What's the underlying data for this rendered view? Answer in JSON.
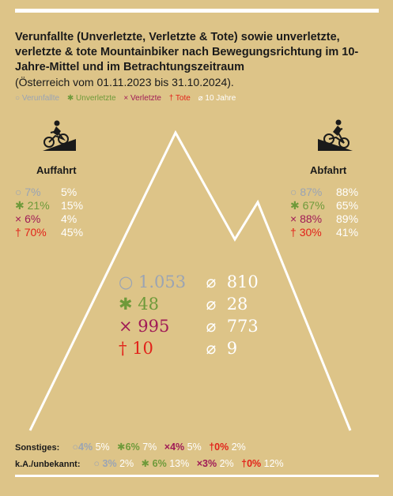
{
  "title": "Verunfallte (Unverletzte, Verletzte & Tote) sowie unverletzte, verletzte & tote Mountainbiker nach Bewegungsrichtung im 10-Jahre-Mittel und im Betrachtungszeitraum",
  "subtitle": "(Österreich vom 01.11.2023 bis 31.10.2024).",
  "legend": [
    {
      "symbol": "○",
      "label": "Verunfallte",
      "color": "#9aa4b4"
    },
    {
      "symbol": "✱",
      "label": "Unverletzte",
      "color": "#6e9a3a"
    },
    {
      "symbol": "×",
      "label": "Verletzte",
      "color": "#a01b56"
    },
    {
      "symbol": "†",
      "label": "Tote",
      "color": "#e2231a"
    },
    {
      "symbol": "⌀",
      "label": "10 Jahre",
      "color": "#ffffff"
    }
  ],
  "colors": {
    "background": "#ddc488",
    "verunfallte": "#9aa4b4",
    "unverletzte": "#6e9a3a",
    "verletzte": "#a01b56",
    "tote": "#e2231a",
    "avg": "#ffffff"
  },
  "symbols": {
    "verunfallte": "○",
    "unverletzte": "✱",
    "verletzte": "×",
    "tote": "†",
    "avg": "⌀"
  },
  "auffahrt": {
    "label": "Auffahrt",
    "icon": "uphill-cyclist-icon",
    "rows": [
      {
        "cur": "7%",
        "prev": "5%"
      },
      {
        "cur": "21%",
        "prev": "15%"
      },
      {
        "cur": "6%",
        "prev": "4%"
      },
      {
        "cur": "70%",
        "prev": "45%"
      }
    ]
  },
  "abfahrt": {
    "label": "Abfahrt",
    "icon": "downhill-cyclist-icon",
    "rows": [
      {
        "cur": "87%",
        "prev": "88%"
      },
      {
        "cur": "67%",
        "prev": "65%"
      },
      {
        "cur": "88%",
        "prev": "89%"
      },
      {
        "cur": "30%",
        "prev": "41%"
      }
    ]
  },
  "totals": [
    {
      "cur": "1.053",
      "avg": "810"
    },
    {
      "cur": "48",
      "avg": "28"
    },
    {
      "cur": "995",
      "avg": "773"
    },
    {
      "cur": "10",
      "avg": "9"
    }
  ],
  "sonstiges": {
    "label": "Sonstiges:",
    "values": [
      {
        "cur": "4%",
        "prev": "5%"
      },
      {
        "cur": "6%",
        "prev": "7%"
      },
      {
        "cur": "4%",
        "prev": "5%"
      },
      {
        "cur": "0%",
        "prev": "2%"
      }
    ]
  },
  "unbekannt": {
    "label": "k.A./unbekannt:",
    "values": [
      {
        "cur": "3%",
        "prev": "2%"
      },
      {
        "cur": "6%",
        "prev": "13%"
      },
      {
        "cur": "3%",
        "prev": "2%"
      },
      {
        "cur": "0%",
        "prev": "12%"
      }
    ]
  },
  "chart_data": {
    "type": "table",
    "categories": [
      "Verunfallte",
      "Unverletzte",
      "Verletzte",
      "Tote"
    ],
    "series": [
      {
        "name": "Auffahrt",
        "values": [
          7,
          21,
          6,
          70
        ],
        "ten_year_avg": [
          5,
          15,
          4,
          45
        ],
        "unit": "%"
      },
      {
        "name": "Abfahrt",
        "values": [
          87,
          67,
          88,
          30
        ],
        "ten_year_avg": [
          88,
          65,
          89,
          41
        ],
        "unit": "%"
      },
      {
        "name": "Sonstiges",
        "values": [
          4,
          6,
          4,
          0
        ],
        "ten_year_avg": [
          5,
          7,
          5,
          2
        ],
        "unit": "%"
      },
      {
        "name": "k.A./unbekannt",
        "values": [
          3,
          6,
          3,
          0
        ],
        "ten_year_avg": [
          2,
          13,
          2,
          12
        ],
        "unit": "%"
      }
    ],
    "totals": {
      "values": [
        1053,
        48,
        995,
        10
      ],
      "ten_year_avg": [
        810,
        28,
        773,
        9
      ]
    }
  }
}
